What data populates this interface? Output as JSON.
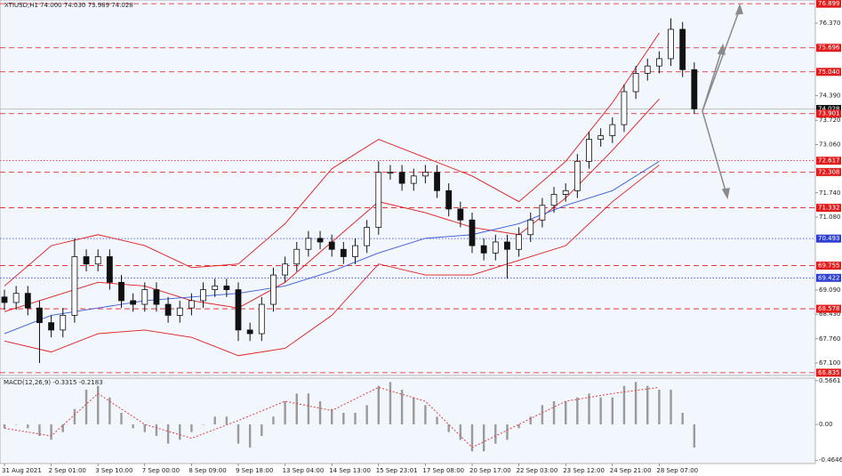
{
  "chart_data": [
    {
      "type": "candlestick",
      "title": "XTIUSD,H1  74.000 74.030 73.989 74.028",
      "categories": [
        "31 Aug 2021",
        "2 Sep 01:00",
        "3 Sep 10:00",
        "7 Sep 00:00",
        "8 Sep 09:00",
        "9 Sep 18:00",
        "13 Sep 04:00",
        "14 Sep 13:00",
        "15 Sep 23:01",
        "17 Sep 08:00",
        "20 Sep 17:00",
        "22 Sep 03:00",
        "23 Sep 12:00",
        "24 Sep 21:00",
        "28 Sep 07:00"
      ],
      "ohlc": {
        "open": [
          68.9,
          68.75,
          69.0,
          68.6,
          68.2,
          68.0,
          68.4,
          70.0,
          69.8,
          70.0,
          69.3,
          68.8,
          68.7,
          69.1,
          68.7,
          68.4,
          68.6,
          68.8,
          69.1,
          69.2,
          69.1,
          68.0,
          67.9,
          68.7,
          69.5,
          69.8,
          70.2,
          70.5,
          70.4,
          70.2,
          70.0,
          70.3,
          70.8,
          72.3,
          72.3,
          72.0,
          72.2,
          72.3,
          71.8,
          71.3,
          71.0,
          70.3,
          70.1,
          70.4,
          70.2,
          70.6,
          71.0,
          71.4,
          71.7,
          71.8,
          72.6,
          73.2,
          73.3,
          73.6,
          74.5,
          75.0,
          75.2,
          75.4,
          76.2,
          75.1
        ],
        "high": [
          69.1,
          69.2,
          69.2,
          68.8,
          68.4,
          68.6,
          70.5,
          70.2,
          70.2,
          70.2,
          69.5,
          69.0,
          69.3,
          69.3,
          68.9,
          68.8,
          69.0,
          69.3,
          69.4,
          69.4,
          69.3,
          68.2,
          68.9,
          69.7,
          70.0,
          70.4,
          70.7,
          70.7,
          70.6,
          70.4,
          70.5,
          71.0,
          72.6,
          72.5,
          72.5,
          72.4,
          72.5,
          72.5,
          72.0,
          71.5,
          71.2,
          70.5,
          70.6,
          70.6,
          70.8,
          71.2,
          71.6,
          71.9,
          72.0,
          72.8,
          73.4,
          73.5,
          73.8,
          74.7,
          75.2,
          75.4,
          75.6,
          76.5,
          76.4,
          75.3
        ],
        "low": [
          68.55,
          68.55,
          68.4,
          67.1,
          67.8,
          67.8,
          68.2,
          69.6,
          69.6,
          69.1,
          68.6,
          68.5,
          68.5,
          68.5,
          68.2,
          68.2,
          68.4,
          68.6,
          68.9,
          68.9,
          67.7,
          67.7,
          67.7,
          68.5,
          69.3,
          69.6,
          70.0,
          70.2,
          70.0,
          69.8,
          69.8,
          70.1,
          70.6,
          72.1,
          71.8,
          71.8,
          72.0,
          71.6,
          71.1,
          70.8,
          70.1,
          69.9,
          69.9,
          69.4,
          70.0,
          70.4,
          70.8,
          71.2,
          71.5,
          71.6,
          72.4,
          73.0,
          73.1,
          73.4,
          74.3,
          74.8,
          75.0,
          75.2,
          74.9,
          73.9
        ],
        "close": [
          68.75,
          69.0,
          68.6,
          68.2,
          68.0,
          68.4,
          70.0,
          69.8,
          70.0,
          69.3,
          68.8,
          68.7,
          69.1,
          68.7,
          68.4,
          68.6,
          68.8,
          69.1,
          69.2,
          69.1,
          68.0,
          67.9,
          68.7,
          69.5,
          69.8,
          70.2,
          70.5,
          70.4,
          70.2,
          70.0,
          70.3,
          70.8,
          72.3,
          72.3,
          72.0,
          72.2,
          72.3,
          71.8,
          71.3,
          71.0,
          70.3,
          70.1,
          70.4,
          70.2,
          70.6,
          71.0,
          71.4,
          71.7,
          71.8,
          72.6,
          73.2,
          73.3,
          73.6,
          74.5,
          75.0,
          75.2,
          75.4,
          76.2,
          75.1,
          74.03
        ]
      },
      "overlays": [
        {
          "color": "#e21b1b",
          "values": [
            69.2,
            70.3,
            70.6,
            70.3,
            69.7,
            69.8,
            70.9,
            72.4,
            73.2,
            72.7,
            72.2,
            71.5,
            72.6,
            74.2,
            76.1
          ]
        },
        {
          "color": "#e21b1b",
          "values": [
            68.5,
            68.9,
            69.3,
            69.2,
            68.8,
            68.6,
            69.3,
            70.4,
            71.5,
            71.2,
            70.8,
            70.6,
            71.6,
            72.9,
            74.3
          ]
        },
        {
          "color": "#e21b1b",
          "values": [
            67.7,
            67.4,
            67.9,
            68.0,
            67.8,
            67.3,
            67.5,
            68.4,
            69.8,
            69.5,
            69.5,
            69.9,
            70.3,
            71.5,
            72.5
          ]
        },
        {
          "color": "#3a5bd8",
          "values": [
            67.9,
            68.4,
            68.6,
            68.8,
            68.9,
            69.0,
            69.2,
            69.6,
            70.1,
            70.5,
            70.6,
            70.9,
            71.4,
            71.8,
            72.6
          ]
        }
      ],
      "levels": [
        {
          "value": 76.899,
          "label": "76.899",
          "color": "#e21b1b",
          "style": "dashed"
        },
        {
          "value": 75.696,
          "label": "75.696",
          "color": "#e21b1b",
          "style": "dashed"
        },
        {
          "value": 75.04,
          "label": "75.040",
          "color": "#e21b1b",
          "style": "dashed"
        },
        {
          "value": 74.028,
          "label": "74.028",
          "color": "#111111",
          "style": "solid"
        },
        {
          "value": 73.901,
          "label": "73.901",
          "color": "#e21b1b",
          "style": "dashed"
        },
        {
          "value": 72.617,
          "label": "72.617",
          "color": "#e21b1b",
          "style": "dotted"
        },
        {
          "value": 72.308,
          "label": "72.308",
          "color": "#e21b1b",
          "style": "dashed"
        },
        {
          "value": 71.332,
          "label": "71.332",
          "color": "#e21b1b",
          "style": "dashed"
        },
        {
          "value": 70.493,
          "label": "70.493",
          "color": "#2d3fd0",
          "style": "dotted"
        },
        {
          "value": 69.755,
          "label": "69.755",
          "color": "#e21b1b",
          "style": "dashed"
        },
        {
          "value": 69.422,
          "label": "69.422",
          "color": "#2d3fd0",
          "style": "dotted"
        },
        {
          "value": 68.578,
          "label": "68.578",
          "color": "#e21b1b",
          "style": "dashed"
        },
        {
          "value": 66.835,
          "label": "66.835",
          "color": "#e21b1b",
          "style": "dashed"
        }
      ],
      "ylim": [
        66.76,
        77.0
      ],
      "yticks": [
        {
          "value": 76.37,
          "label": "76.370"
        },
        {
          "value": 74.39,
          "label": "74.390"
        },
        {
          "value": 73.72,
          "label": "73.720"
        },
        {
          "value": 73.06,
          "label": "73.060"
        },
        {
          "value": 71.74,
          "label": "71.740"
        },
        {
          "value": 71.08,
          "label": "71.080"
        },
        {
          "value": 69.09,
          "label": "69.090"
        },
        {
          "value": 68.43,
          "label": "68.430"
        },
        {
          "value": 67.76,
          "label": "67.760"
        },
        {
          "value": 67.1,
          "label": "67.100"
        }
      ]
    },
    {
      "type": "bar",
      "title": "MACD(12,26,9) -0.3315 -0.2183",
      "color": "#9a9a9a",
      "values": [
        -0.05,
        0.0,
        -0.05,
        -0.15,
        -0.2,
        -0.1,
        0.2,
        0.45,
        0.5,
        0.35,
        0.15,
        -0.05,
        -0.1,
        -0.15,
        -0.25,
        -0.2,
        -0.1,
        0.0,
        0.1,
        0.1,
        -0.25,
        -0.3,
        -0.15,
        0.1,
        0.3,
        0.4,
        0.4,
        0.3,
        0.2,
        0.15,
        0.15,
        0.25,
        0.5,
        0.55,
        0.45,
        0.35,
        0.25,
        0.1,
        -0.1,
        -0.2,
        -0.35,
        -0.35,
        -0.25,
        -0.2,
        -0.05,
        0.1,
        0.25,
        0.3,
        0.3,
        0.35,
        0.4,
        0.35,
        0.35,
        0.5,
        0.55,
        0.5,
        0.45,
        0.45,
        0.15,
        -0.3
      ],
      "signal": {
        "color": "#e0403c",
        "values": [
          -0.05,
          -0.15,
          0.4,
          0.0,
          -0.18,
          0.05,
          0.3,
          0.18,
          0.48,
          0.3,
          -0.3,
          0.0,
          0.3,
          0.4,
          0.48
        ]
      },
      "ylim": [
        -0.508,
        0.6
      ],
      "yticks": [
        0.5661,
        {
          "value": 0,
          "label": "0.00"
        },
        -0.4646
      ]
    }
  ]
}
